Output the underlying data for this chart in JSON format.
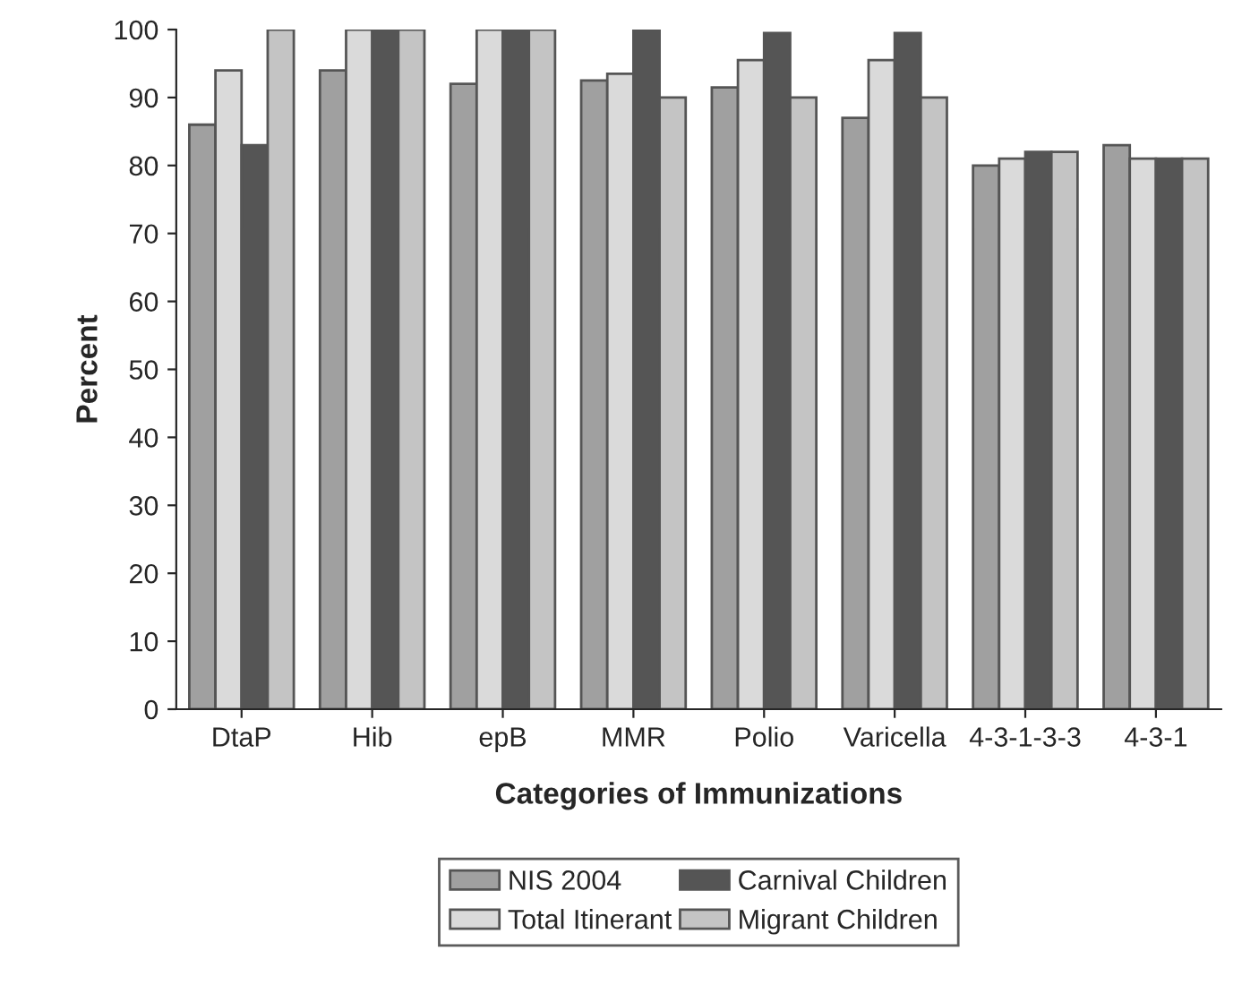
{
  "chart_data": {
    "type": "bar",
    "xlabel": "Categories of Immunizations",
    "ylabel": "Percent",
    "categories": [
      "DtaP",
      "Hib",
      "epB",
      "MMR",
      "Polio",
      "Varicella",
      "4-3-1-3-3",
      "4-3-1"
    ],
    "series": [
      {
        "name": "NIS 2004",
        "color": "#a0a0a0",
        "values": [
          86,
          94,
          92,
          92.5,
          91.5,
          87,
          80,
          83
        ]
      },
      {
        "name": "Total Itinerant",
        "color": "#dadada",
        "values": [
          94,
          100,
          100,
          93.5,
          95.5,
          95.5,
          81,
          81
        ]
      },
      {
        "name": "Carnival Children",
        "color": "#555555",
        "values": [
          83,
          100,
          100,
          100,
          99.5,
          99.5,
          82,
          81
        ]
      },
      {
        "name": "Migrant Children",
        "color": "#c4c4c4",
        "values": [
          100,
          100,
          100,
          90,
          90,
          90,
          82,
          81
        ]
      }
    ],
    "ylim": [
      0,
      100
    ],
    "yticks": [
      0,
      10,
      20,
      30,
      40,
      50,
      60,
      70,
      80,
      90,
      100
    ],
    "grid": false,
    "legend": "bottom"
  }
}
